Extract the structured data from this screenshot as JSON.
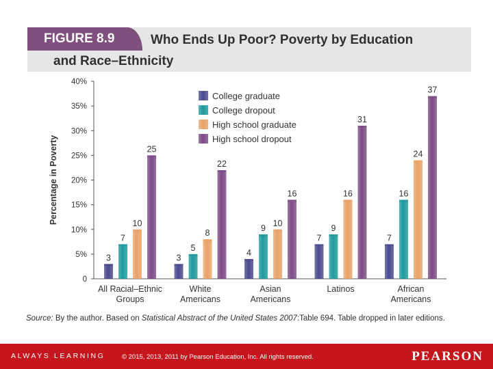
{
  "figure": {
    "label": "FIGURE 8.9",
    "title_line1": "Who Ends Up Poor? Poverty by Education",
    "title_line2": "and Race–Ethnicity"
  },
  "chart_data": {
    "type": "bar",
    "title": "Who Ends Up Poor? Poverty by Education and Race–Ethnicity",
    "xlabel": "",
    "ylabel": "Percentage in Poverty",
    "ylim": [
      0,
      40
    ],
    "yticks": [
      "0",
      "5%",
      "10%",
      "15%",
      "20%",
      "25%",
      "30%",
      "35%",
      "40%"
    ],
    "categories": [
      [
        "All Racial–Ethnic",
        "Groups"
      ],
      [
        "White",
        "Americans"
      ],
      [
        "Asian",
        "Americans"
      ],
      [
        "Latinos"
      ],
      [
        "African",
        "Americans"
      ]
    ],
    "legend_position": "top-left",
    "series": [
      {
        "name": "College graduate",
        "color": "#4a4a8e",
        "values": [
          3,
          3,
          4,
          7,
          7
        ]
      },
      {
        "name": "College dropout",
        "color": "#1e9a9e",
        "values": [
          7,
          5,
          9,
          9,
          16
        ]
      },
      {
        "name": "High school graduate",
        "color": "#e9a268",
        "values": [
          10,
          8,
          10,
          16,
          24
        ]
      },
      {
        "name": "High school dropout",
        "color": "#7d4a87",
        "values": [
          25,
          22,
          16,
          31,
          37
        ]
      }
    ]
  },
  "source": {
    "prefix": "Source:",
    "text1": " By the author. Based on ",
    "italic": "Statistical Abstract of the United States 2007",
    "text2": ":Table 694. Table dropped in later editions."
  },
  "footer": {
    "left": "ALWAYS LEARNING",
    "copyright": "© 2015, 2013, 2011 by Pearson Education, Inc. All rights reserved.",
    "brand": "PEARSON"
  }
}
